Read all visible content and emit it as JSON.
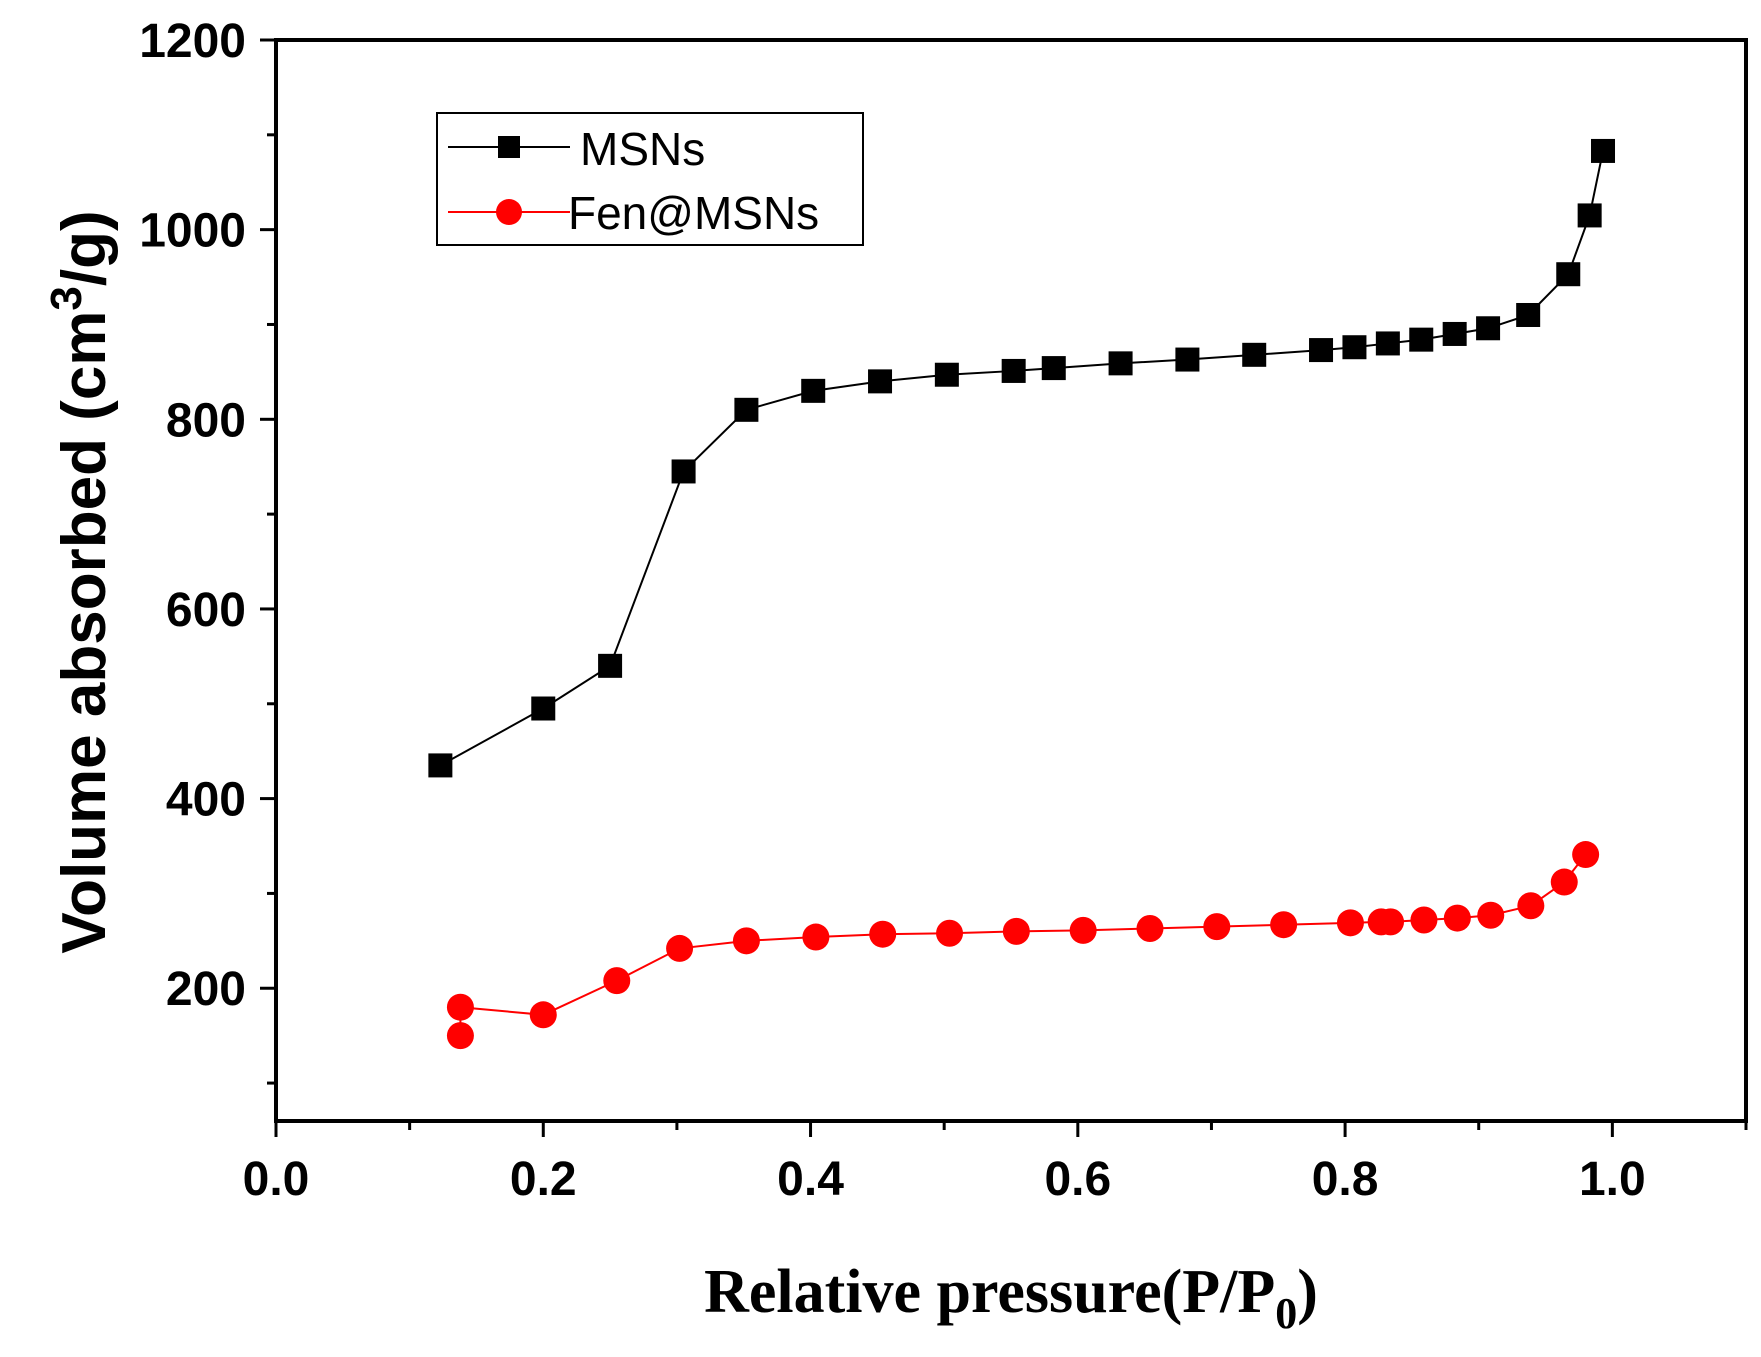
{
  "chart_data": {
    "type": "line",
    "title": "",
    "xlabel": "Relative pressure(P/P",
    "xlabel_sub": "0",
    "xlabel_close": ")",
    "ylabel": "Volume absorbed (cm",
    "ylabel_sup": "3",
    "ylabel_close": "/g)",
    "xlim": [
      0.0,
      1.1
    ],
    "ylim": [
      60,
      1200
    ],
    "xticks": [
      0.0,
      0.2,
      0.4,
      0.6,
      0.8,
      1.0
    ],
    "xtick_labels": [
      "0.0",
      "0.2",
      "0.4",
      "0.6",
      "0.8",
      "1.0"
    ],
    "yticks": [
      200,
      400,
      600,
      800,
      1000,
      1200
    ],
    "ytick_labels": [
      "200",
      "400",
      "600",
      "800",
      "1000",
      "1200"
    ],
    "grid": false,
    "legend_position": "top-left",
    "series": [
      {
        "name": "MSNs",
        "color": "#000000",
        "marker": "square",
        "x": [
          0.123,
          0.2,
          0.25,
          0.305,
          0.352,
          0.402,
          0.452,
          0.502,
          0.552,
          0.582,
          0.632,
          0.682,
          0.732,
          0.782,
          0.807,
          0.832,
          0.857,
          0.882,
          0.907,
          0.937,
          0.967,
          0.983,
          0.993
        ],
        "y": [
          435,
          495,
          540,
          745,
          810,
          830,
          840,
          847,
          851,
          854,
          859,
          863,
          868,
          873,
          876,
          880,
          884,
          890,
          896,
          910,
          953,
          1015,
          1083
        ]
      },
      {
        "name": "Fen@MSNs",
        "color": "#ff0000",
        "marker": "circle",
        "x": [
          0.138,
          0.138,
          0.2,
          0.255,
          0.302,
          0.352,
          0.404,
          0.454,
          0.504,
          0.554,
          0.604,
          0.654,
          0.704,
          0.754,
          0.804,
          0.827,
          0.834,
          0.859,
          0.884,
          0.909,
          0.939,
          0.964,
          0.98
        ],
        "y": [
          150,
          180,
          172,
          208,
          242,
          250,
          254,
          257,
          258,
          260,
          261,
          263,
          265,
          267,
          269,
          270,
          270,
          272,
          274,
          277,
          287,
          312,
          341
        ]
      }
    ]
  }
}
